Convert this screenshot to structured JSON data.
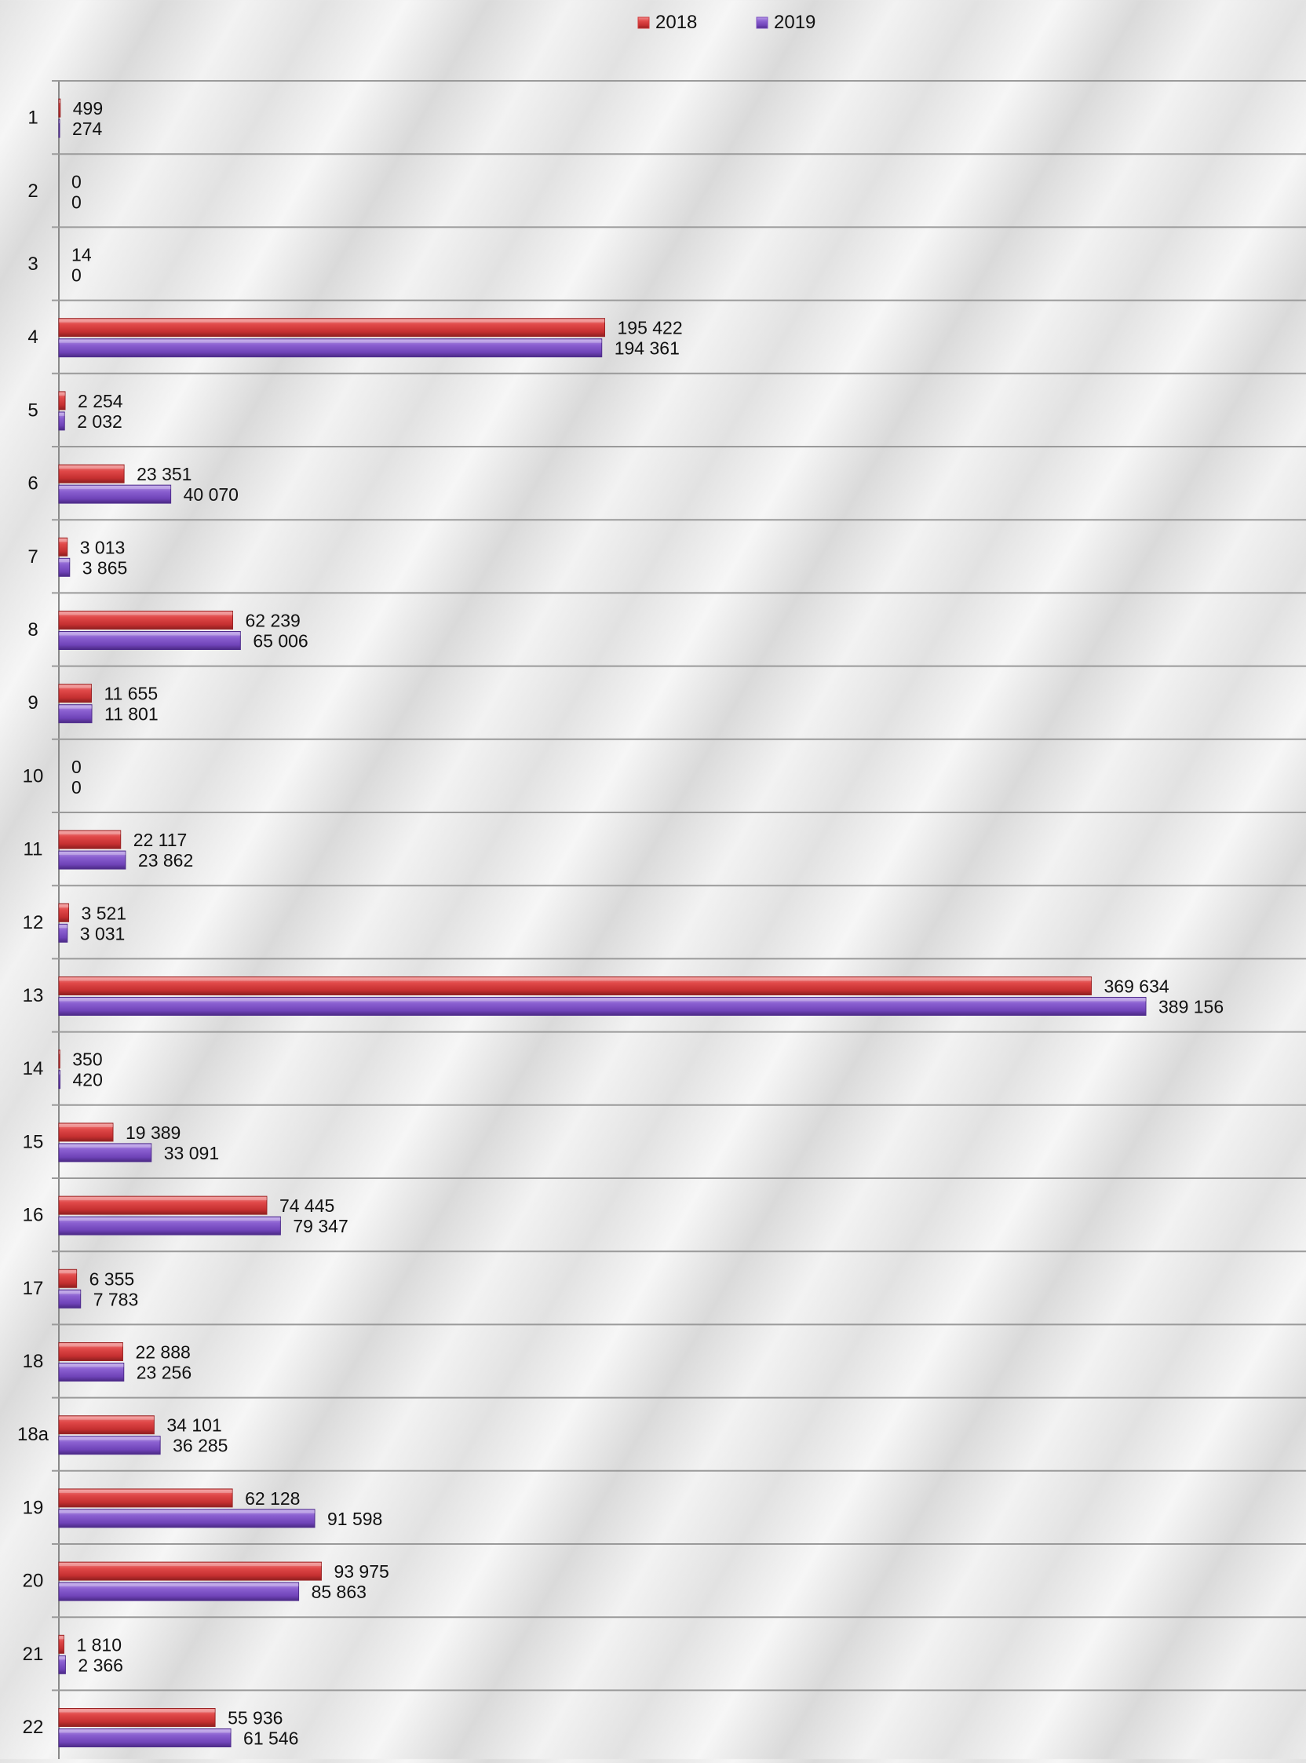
{
  "chart_data": {
    "type": "bar",
    "orientation": "horizontal",
    "categories": [
      "1",
      "2",
      "3",
      "4",
      "5",
      "6",
      "7",
      "8",
      "9",
      "10",
      "11",
      "12",
      "13",
      "14",
      "15",
      "16",
      "17",
      "18",
      "18a",
      "19",
      "20",
      "21",
      "22"
    ],
    "series": [
      {
        "name": "2018",
        "color": "#d0393a",
        "values": [
          499,
          0,
          14,
          195422,
          2254,
          23351,
          3013,
          62239,
          11655,
          0,
          22117,
          3521,
          369634,
          350,
          19389,
          74445,
          6355,
          22888,
          34101,
          62128,
          93975,
          1810,
          55936
        ],
        "labels": [
          "499",
          "0",
          "14",
          "195 422",
          "2 254",
          "23 351",
          "3 013",
          "62 239",
          "11 655",
          "0",
          "22 117",
          "3 521",
          "369 634",
          "350",
          "19 389",
          "74 445",
          "6 355",
          "22 888",
          "34 101",
          "62 128",
          "93 975",
          "1 810",
          "55 936"
        ]
      },
      {
        "name": "2019",
        "color": "#7c4fc0",
        "values": [
          274,
          0,
          0,
          194361,
          2032,
          40070,
          3865,
          65006,
          11801,
          0,
          23862,
          3031,
          389156,
          420,
          33091,
          79347,
          7783,
          23256,
          36285,
          91598,
          85863,
          2366,
          61546
        ],
        "labels": [
          "274",
          "0",
          "0",
          "194 361",
          "2 032",
          "40 070",
          "3 865",
          "65 006",
          "11 801",
          "0",
          "23 862",
          "3 031",
          "389 156",
          "420",
          "33 091",
          "79 347",
          "7 783",
          "23 256",
          "36 285",
          "91 598",
          "85 863",
          "2 366",
          "61 546"
        ]
      }
    ],
    "xlim": [
      0,
      450000
    ],
    "legend_position": "top-center",
    "grid": "horizontal separators between categories"
  }
}
